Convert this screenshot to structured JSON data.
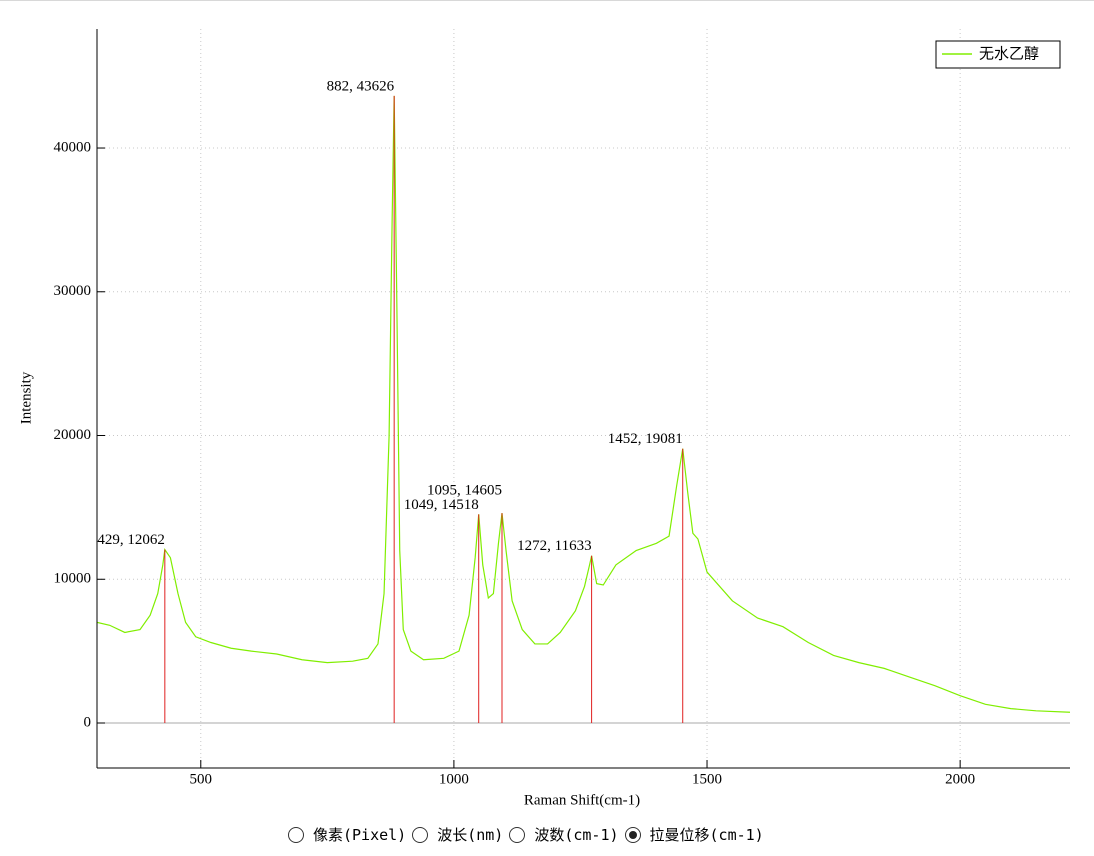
{
  "chart_data": {
    "type": "line",
    "x_label": "Raman Shift(cm-1)",
    "y_label": "Intensity",
    "xlim": [
      295,
      2217
    ],
    "ylim": [
      -3130,
      48280
    ],
    "xticks": [
      500,
      1000,
      1500,
      2000
    ],
    "yticks": [
      0,
      10000,
      20000,
      30000,
      40000
    ],
    "grid": true,
    "legend": "upper right",
    "series": [
      {
        "name": "无水乙醇",
        "color": "#80ee00",
        "x": [
          295,
          320,
          350,
          380,
          400,
          415,
          425,
          429,
          440,
          455,
          470,
          490,
          520,
          560,
          600,
          650,
          700,
          750,
          800,
          830,
          850,
          862,
          872,
          878,
          882,
          887,
          893,
          900,
          915,
          940,
          980,
          1010,
          1030,
          1042,
          1049,
          1057,
          1068,
          1078,
          1088,
          1095,
          1103,
          1115,
          1135,
          1160,
          1185,
          1210,
          1240,
          1258,
          1268,
          1272,
          1282,
          1295,
          1320,
          1360,
          1400,
          1425,
          1440,
          1452,
          1462,
          1472,
          1482,
          1500,
          1550,
          1600,
          1650,
          1700,
          1750,
          1800,
          1850,
          1900,
          1950,
          2000,
          2050,
          2100,
          2150,
          2217
        ],
        "values": [
          7000,
          6800,
          6300,
          6500,
          7500,
          9000,
          11000,
          12062,
          11500,
          9000,
          7000,
          6000,
          5600,
          5200,
          5000,
          4800,
          4400,
          4200,
          4300,
          4500,
          5500,
          9000,
          20000,
          35000,
          43626,
          30000,
          12000,
          6500,
          5000,
          4400,
          4500,
          5000,
          7500,
          11500,
          14518,
          11000,
          8700,
          9000,
          12500,
          14605,
          12000,
          8500,
          6500,
          5500,
          5500,
          6300,
          7800,
          9500,
          11000,
          11633,
          9700,
          9600,
          11000,
          12000,
          12500,
          13000,
          16500,
          19081,
          16000,
          13200,
          12800,
          10500,
          8500,
          7300,
          6700,
          5600,
          4700,
          4200,
          3800,
          3200,
          2600,
          1900,
          1300,
          1000,
          850,
          750
        ]
      }
    ],
    "peaks": {
      "color": "#e02020",
      "x": [
        429,
        882,
        1049,
        1095,
        1272,
        1452
      ],
      "values": [
        12062,
        43626,
        14518,
        14605,
        11633,
        19081
      ],
      "value_labels": [
        "429, 12062",
        "882, 43626",
        "1049, 14518",
        "1095, 14605",
        "1272, 11633",
        "1452, 19081"
      ]
    }
  },
  "ui": {
    "radio_options": [
      "像素(Pixel)",
      "波长(nm)",
      "波数(cm-1)",
      "拉曼位移(cm-1)"
    ],
    "selected": 3
  }
}
